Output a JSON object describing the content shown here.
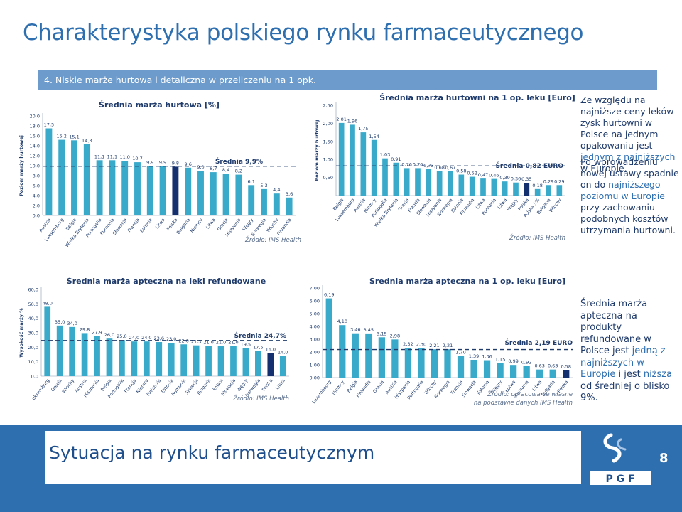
{
  "title": "Charakterystyka polskiego rynku farmaceutycznego",
  "banner": "4. Niskie marże hurtowa i detaliczna w przeliczeniu na 1 opk.",
  "footer": {
    "title": "Sytuacja na rynku farmaceutycznym",
    "page": "8",
    "logo_text": "P G F"
  },
  "notes": {
    "top": [
      {
        "text": "Ze względu na najniższe ceny leków zysk hurtowni w Polsce na jednym opakowaniu jest ",
        "hl": false
      },
      {
        "text": "jednym z najniższych",
        "hl": true
      },
      {
        "text": " w Europie.",
        "hl": false
      }
    ],
    "top2": [
      {
        "text": "Po wprowadzeniu nowej ustawy spadnie on do ",
        "hl": false
      },
      {
        "text": "najniższego poziomu w Europie",
        "hl": true
      },
      {
        "text": " przy zachowaniu podobnych kosztów utrzymania hurtowni.",
        "hl": false
      }
    ],
    "bottom": [
      {
        "text": "Średnia marża apteczna na produkty refundowane w Polsce jest ",
        "hl": false
      },
      {
        "text": "jedną z najniższych w Europie",
        "hl": true
      },
      {
        "text": " i jest ",
        "hl": false
      },
      {
        "text": "niższa",
        "hl": true
      },
      {
        "text": " od średniej o blisko 9%.",
        "hl": false
      }
    ]
  },
  "chart_data": [
    {
      "id": "c1",
      "type": "bar",
      "title": "Średnia marża hurtowa [%]",
      "ylabel": "Poziom marży hurtowej",
      "ylim": [
        0,
        20
      ],
      "yticks": [
        "0,0",
        "2,0",
        "4,0",
        "6,0",
        "8,0",
        "10,0",
        "12,0",
        "14,0",
        "16,0",
        "18,0",
        "20,0"
      ],
      "categories": [
        "Austria",
        "Luksemburg",
        "Belgia",
        "Wielka Brytania",
        "Portugalia",
        "Rumunia",
        "Słowacja",
        "Francja",
        "Estonia",
        "Litwa",
        "Polska",
        "Bułgaria",
        "Niemcy",
        "Litwa",
        "Grecja",
        "Hiszpania",
        "Węgry",
        "Norwegia",
        "Włochy",
        "Finlandia"
      ],
      "values": [
        17.5,
        15.2,
        15.1,
        14.3,
        11.1,
        11.1,
        11.0,
        10.7,
        9.9,
        9.9,
        9.8,
        9.6,
        9.0,
        8.7,
        8.4,
        8.2,
        6.1,
        5.3,
        4.4,
        3.6
      ],
      "labels": [
        "17,5",
        "15,2",
        "15,1",
        "14,3",
        "11,1",
        "11,1",
        "11,0",
        "10,7",
        "9,9",
        "9,9",
        "9,8",
        "9,6",
        "9,0",
        "8,7",
        "8,4",
        "8,2",
        "6,1",
        "5,3",
        "4,4",
        "3,6"
      ],
      "highlight_index": 10,
      "average": 9.9,
      "average_label": "Średnia 9,9%",
      "source": "Źródło: IMS Health",
      "colors": {
        "bar": "#3aaacb",
        "highlight": "#15306e",
        "avg": "#1f3b6b"
      }
    },
    {
      "id": "c2",
      "type": "bar",
      "title": "Średnia marża hurtowni na 1 op. leku [Euro]",
      "ylabel": "Poziom marży hurtowej",
      "ylim": [
        0,
        2.5
      ],
      "yticks": [
        "-",
        "0,50",
        "1,00",
        "1,50",
        "2,00",
        "2,50"
      ],
      "categories": [
        "Belgia",
        "Luksemburg",
        "Austria",
        "Niemcy",
        "Portugalia",
        "Wielka Brytania",
        "Grecja",
        "Francja",
        "Słowacja",
        "Hiszpania",
        "Norwegia",
        "Estonia",
        "Finlandia",
        "Litwa",
        "Rumunia",
        "Litwa",
        "Węgry",
        "Polska",
        "Polska 5%",
        "Bułgaria",
        "Włochy"
      ],
      "values": [
        2.01,
        1.96,
        1.75,
        1.54,
        1.03,
        0.91,
        0.76,
        0.76,
        0.73,
        0.68,
        0.67,
        0.58,
        0.52,
        0.47,
        0.46,
        0.39,
        0.36,
        0.35,
        0.18,
        0.29,
        0.29
      ],
      "labels": [
        "2,01",
        "1,96",
        "1,75",
        "1,54",
        "1,03",
        "0,91",
        "0,76",
        "0,76",
        "0,73",
        "0,68",
        "0,67",
        "0,58",
        "0,52",
        "0,47",
        "0,46",
        "0,39",
        "0,36",
        "0,35",
        "0,18",
        "0,29",
        "0,29"
      ],
      "highlight_index": 17,
      "average": 0.82,
      "average_label": "Średnia 0,82 EURO",
      "source": "Źródło: IMS Health",
      "colors": {
        "bar": "#3aaacb",
        "highlight": "#15306e",
        "avg": "#1f3b6b"
      }
    },
    {
      "id": "c3",
      "type": "bar",
      "title": "Średnia marża apteczna na leki refundowane",
      "ylabel": "Wysokość marży %",
      "ylim": [
        0,
        60
      ],
      "yticks": [
        "0,0",
        "10,0",
        "20,0",
        "30,0",
        "40,0",
        "50,0",
        "60,0"
      ],
      "categories": [
        "Luksemburg",
        "Grecja",
        "Włochy",
        "Austria",
        "Hiszpania",
        "Belgia",
        "Portugalia",
        "Francja",
        "Niemcy",
        "Finlandia",
        "Estonia",
        "Rumunia",
        "Szwecja",
        "Bułgaria",
        "Łotwa",
        "Słowacja",
        "Węgry",
        "Norwegia",
        "Polska",
        "Litwa"
      ],
      "values": [
        48.0,
        35.0,
        34.0,
        29.8,
        27.9,
        26.0,
        25.0,
        24.0,
        24.0,
        23.6,
        23.0,
        22.0,
        21.3,
        21.0,
        21.0,
        21.0,
        19.5,
        17.5,
        16.0,
        14.0
      ],
      "labels": [
        "48,0",
        "35,0",
        "34,0",
        "29,8",
        "27,9",
        "26,0",
        "25,0",
        "24,0",
        "24,0",
        "23,6",
        "23,0",
        "22,0",
        "21,3",
        "21,0",
        "21,0",
        "21,0",
        "19,5",
        "17,5",
        "16,0",
        "14,0"
      ],
      "highlight_index": 18,
      "average": 24.7,
      "average_label": "Średnia 24,7%",
      "source": "Źródło: IMS Health",
      "colors": {
        "bar": "#3aaacb",
        "highlight": "#15306e",
        "avg": "#1f3b6b"
      }
    },
    {
      "id": "c4",
      "type": "bar",
      "title": "Średnia marża apteczna na 1 op. leku [Euro]",
      "ylabel": "",
      "ylim": [
        0,
        7
      ],
      "yticks": [
        "0,00",
        "1,00",
        "2,00",
        "3,00",
        "4,00",
        "5,00",
        "6,00",
        "7,00"
      ],
      "categories": [
        "Luxembourg",
        "Niemcy",
        "Belgia",
        "Finlandia",
        "Grecja",
        "Austria",
        "Hiszpania",
        "Portugalia",
        "Włochy",
        "Norwegia",
        "Francja",
        "Słowacja",
        "Estonia",
        "Węgry",
        "Łotwa",
        "Rumunia",
        "Litwa",
        "Bułgaria",
        "Polska"
      ],
      "values": [
        6.19,
        4.1,
        3.46,
        3.45,
        3.15,
        2.98,
        2.32,
        2.3,
        2.21,
        2.21,
        1.7,
        1.39,
        1.36,
        1.15,
        0.99,
        0.92,
        0.63,
        0.63,
        0.58
      ],
      "labels": [
        "6,19",
        "4,10",
        "3,46",
        "3,45",
        "3,15",
        "2,98",
        "2,32",
        "2,30",
        "2,21",
        "2,21",
        "1,70",
        "1,39",
        "1,36",
        "1,15",
        "0,99",
        "0,92",
        "0,63",
        "0,63",
        "0,58"
      ],
      "highlight_index": 18,
      "average": 2.19,
      "average_label": "Średnia 2,19 EURO",
      "source": "Źródło: opracowanie własne\nna podstawie danych IMS Health",
      "colors": {
        "bar": "#3aaacb",
        "highlight": "#15306e",
        "avg": "#1f3b6b"
      }
    }
  ]
}
